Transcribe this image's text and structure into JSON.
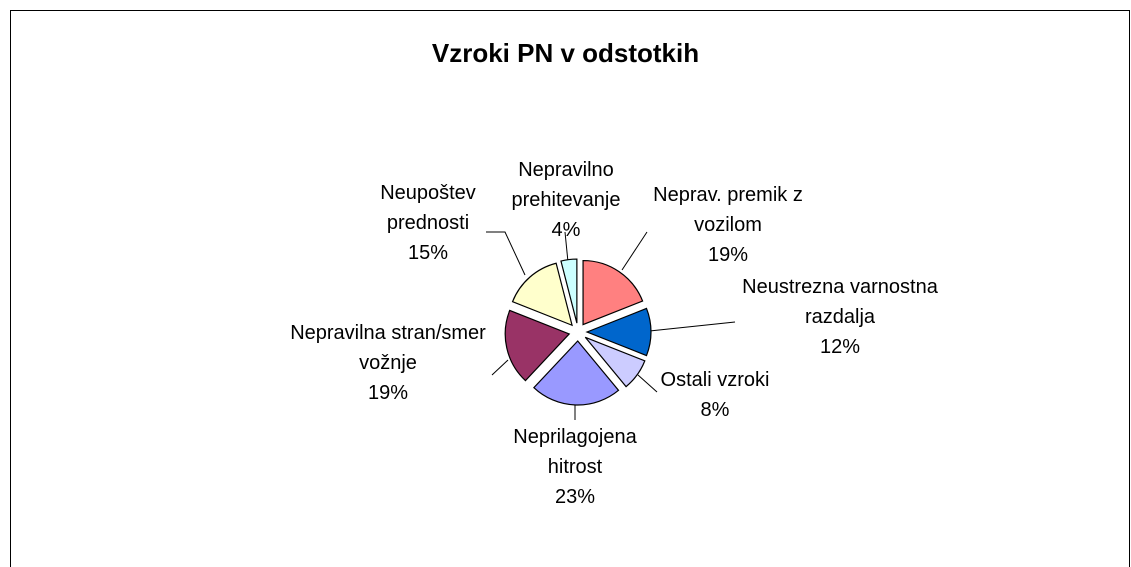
{
  "chart_data": {
    "type": "pie",
    "title": "Vzroki PN v odstotkih",
    "categories": [
      "Neprav. premik z vozilom",
      "Neustrezna varnostna razdalja",
      "Ostali vzroki",
      "Neprilagojena hitrost",
      "Nepravilna stran/smer vožnje",
      "Neupoštev prednosti",
      "Nepravilno prehitevanje"
    ],
    "values": [
      19,
      12,
      8,
      23,
      19,
      15,
      4
    ],
    "value_labels": [
      "19%",
      "12%",
      "8%",
      "23%",
      "19%",
      "15%",
      "4%"
    ],
    "colors": [
      "#ff8080",
      "#0066cc",
      "#ccccff",
      "#9999ff",
      "#993366",
      "#ffffcc",
      "#ccffff"
    ]
  }
}
